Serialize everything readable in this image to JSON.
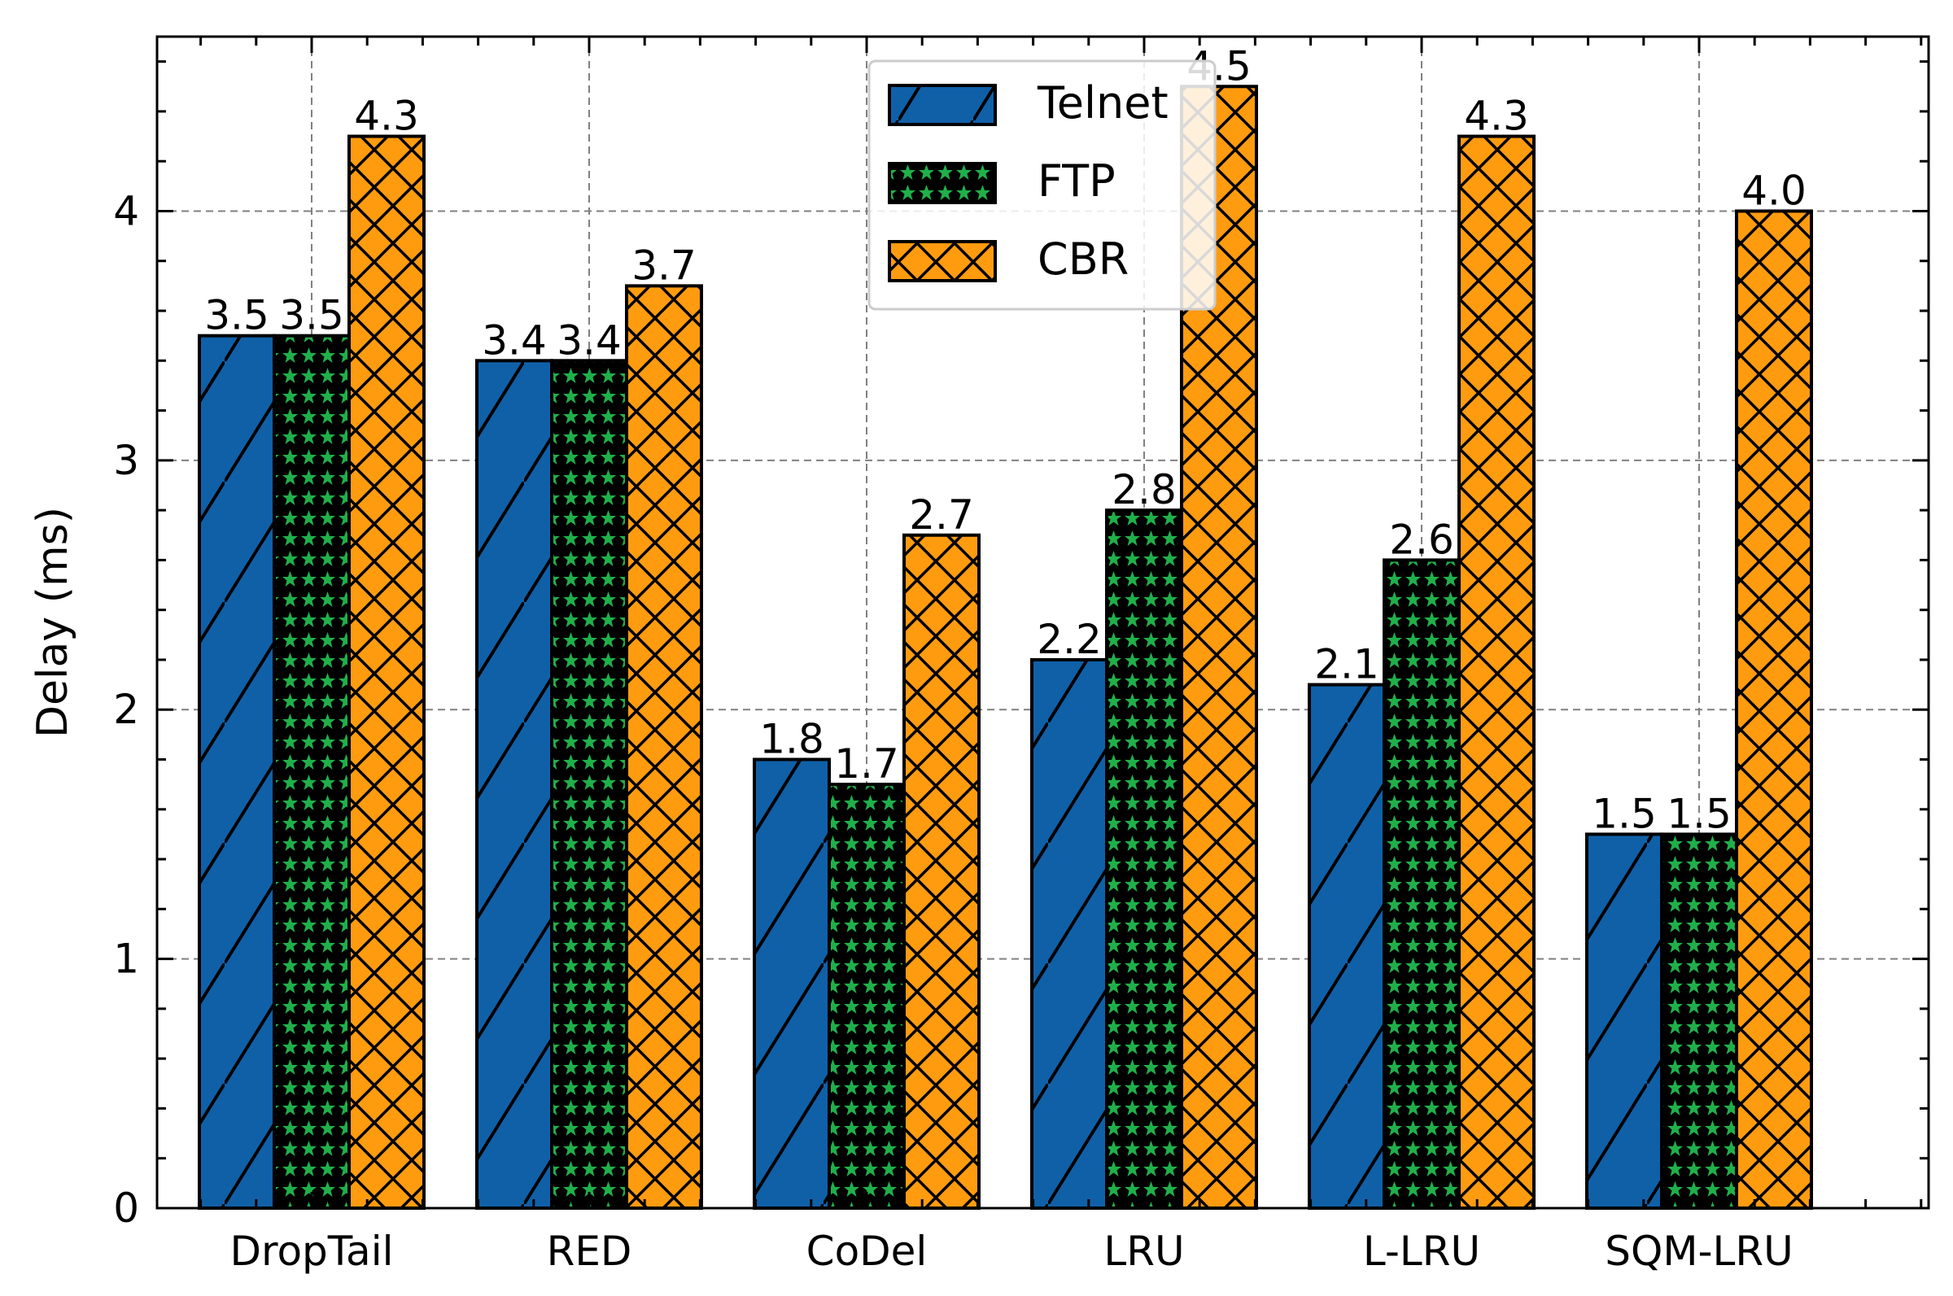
{
  "chart_data": {
    "type": "bar",
    "title": "",
    "xlabel": "",
    "ylabel": "Delay (ms)",
    "ylim": [
      0,
      4.7
    ],
    "yticks": [
      0,
      1,
      2,
      3,
      4
    ],
    "grid": true,
    "legend_position": "top-center",
    "categories": [
      "DropTail",
      "RED",
      "CoDel",
      "LRU",
      "L-LRU",
      "SQM-LRU"
    ],
    "series": [
      {
        "name": "Telnet",
        "color": "#1060a8",
        "pattern": "diagonal-hatch",
        "values": [
          3.5,
          3.4,
          1.8,
          2.2,
          2.1,
          1.5
        ],
        "labels": [
          "3.5",
          "3.4",
          "1.8",
          "2.2",
          "2.1",
          "1.5"
        ]
      },
      {
        "name": "FTP",
        "color": "#20b04a",
        "pattern": "star-dots",
        "values": [
          3.5,
          3.4,
          1.7,
          2.8,
          2.6,
          1.5
        ],
        "labels": [
          "3.5",
          "3.4",
          "1.7",
          "2.8",
          "2.6",
          "1.5"
        ]
      },
      {
        "name": "CBR",
        "color": "#ff9b0f",
        "pattern": "cross-hatch",
        "values": [
          4.3,
          3.7,
          2.7,
          4.5,
          4.3,
          4.0
        ],
        "labels": [
          "4.3",
          "3.7",
          "2.7",
          "4.5",
          "4.3",
          "4.0"
        ]
      }
    ]
  }
}
